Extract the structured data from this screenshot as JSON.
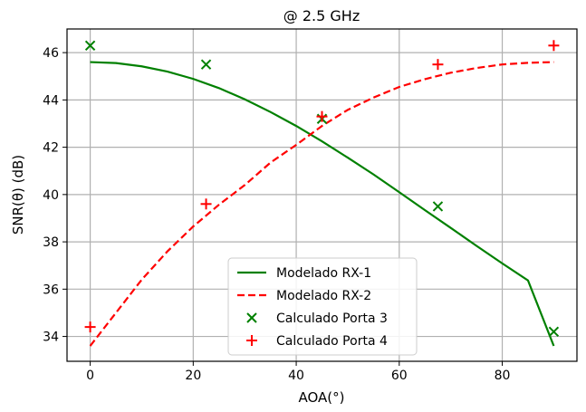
{
  "chart_data": {
    "type": "line",
    "title": "@ 2.5 GHz",
    "xlabel": "AOA(°)",
    "ylabel": "SNR(θ) (dB)",
    "xlim": [
      -4.5,
      94.5
    ],
    "ylim": [
      32.95,
      47
    ],
    "xticks": [
      0,
      20,
      40,
      60,
      80
    ],
    "yticks": [
      34,
      36,
      38,
      40,
      42,
      44,
      46
    ],
    "grid": true,
    "legend_position": "lower-center",
    "series": [
      {
        "name": "Modelado RX-1",
        "kind": "line",
        "style": "solid",
        "color": "#008000",
        "x": [
          0,
          5,
          10,
          15,
          20,
          25,
          30,
          35,
          40,
          45,
          50,
          55,
          60,
          65,
          70,
          75,
          80,
          85,
          90
        ],
        "y": [
          45.6,
          45.56,
          45.42,
          45.2,
          44.89,
          44.5,
          44.03,
          43.49,
          42.9,
          42.25,
          41.56,
          40.85,
          40.1,
          39.34,
          38.59,
          37.83,
          37.09,
          36.37,
          33.6
        ]
      },
      {
        "name": "Modelado RX-2",
        "kind": "line",
        "style": "dashed",
        "color": "#ff0000",
        "x": [
          0,
          5,
          10,
          15,
          20,
          25,
          30,
          35,
          40,
          45,
          50,
          55,
          60,
          65,
          70,
          75,
          80,
          85,
          90
        ],
        "y": [
          33.6,
          35.0,
          36.4,
          37.6,
          38.65,
          39.57,
          40.4,
          41.35,
          42.1,
          42.9,
          43.58,
          44.1,
          44.55,
          44.88,
          45.15,
          45.35,
          45.5,
          45.57,
          45.6
        ]
      },
      {
        "name": "Calculado Porta 3",
        "kind": "scatter",
        "marker": "x",
        "color": "#008000",
        "x": [
          0,
          22.5,
          45,
          67.5,
          90
        ],
        "y": [
          46.3,
          45.5,
          43.2,
          39.5,
          34.2
        ]
      },
      {
        "name": "Calculado Porta 4",
        "kind": "scatter",
        "marker": "+",
        "color": "#ff0000",
        "x": [
          0,
          22.5,
          45,
          67.5,
          90
        ],
        "y": [
          34.4,
          39.6,
          43.3,
          45.5,
          46.3
        ]
      }
    ]
  }
}
